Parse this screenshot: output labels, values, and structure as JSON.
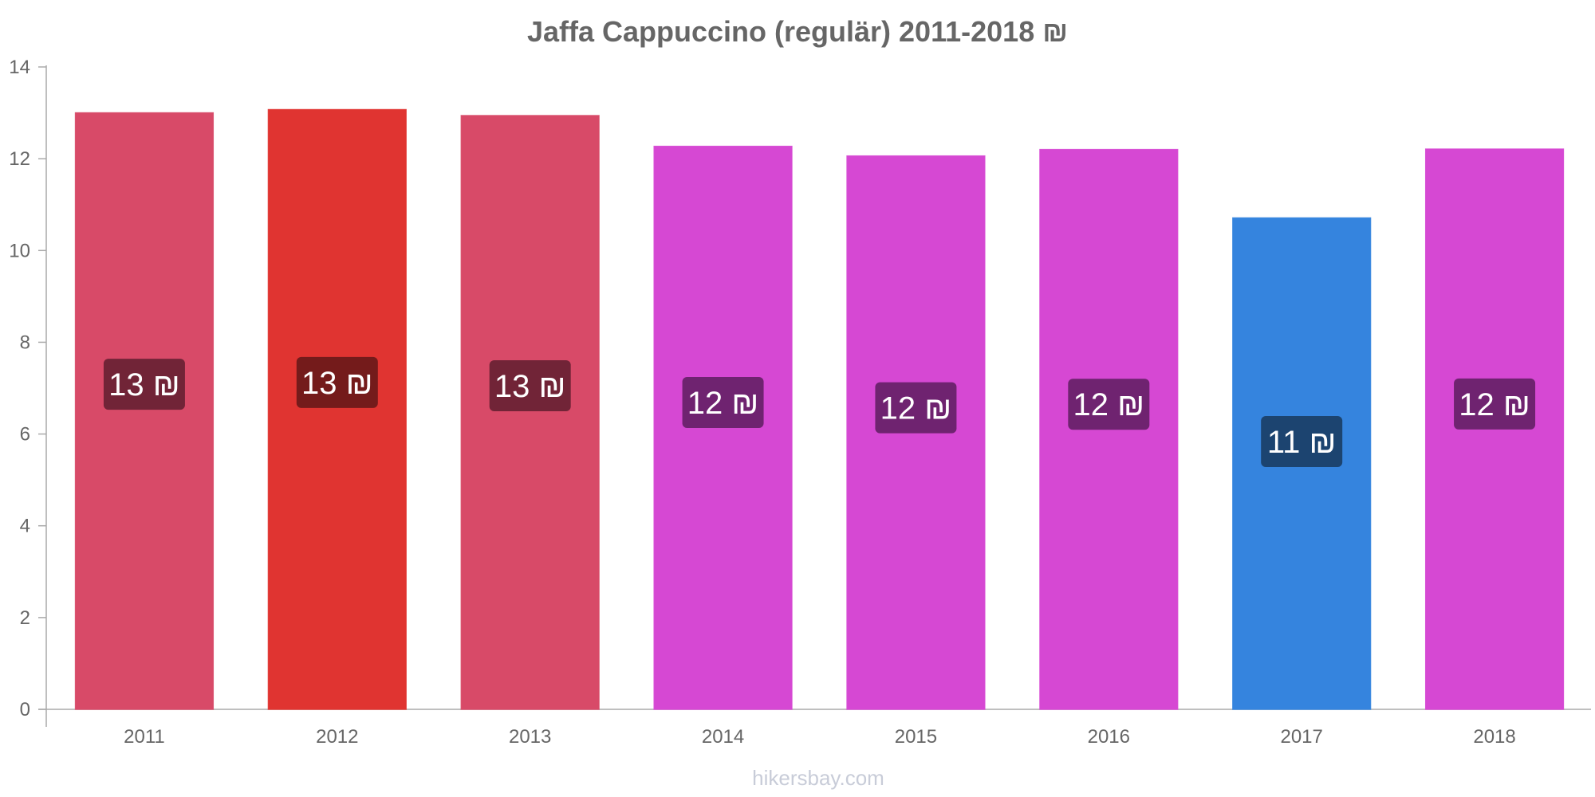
{
  "chart_data": {
    "type": "bar",
    "title": "Jaffa Cappuccino (regulär) 2011-2018 ₪",
    "xlabel": "",
    "ylabel": "",
    "categories": [
      "2011",
      "2012",
      "2013",
      "2014",
      "2015",
      "2016",
      "2017",
      "2018"
    ],
    "values": [
      13.0,
      13.07,
      12.94,
      12.27,
      12.06,
      12.2,
      10.71,
      12.21
    ],
    "data_labels": [
      "13 ₪",
      "13 ₪",
      "13 ₪",
      "12 ₪",
      "12 ₪",
      "12 ₪",
      "11 ₪",
      "12 ₪"
    ],
    "ylim": [
      0,
      14
    ],
    "y_ticks": [
      "0",
      "2",
      "4",
      "6",
      "8",
      "10",
      "12",
      "14"
    ],
    "grid": false,
    "legend": "none",
    "bar_colors": [
      "#d84a68",
      "#e03431",
      "#d84a68",
      "#d648d3",
      "#d648d3",
      "#d648d3",
      "#3584de",
      "#d648d3"
    ],
    "label_box_colors": [
      "#712437",
      "#741b1b",
      "#712437",
      "#6f2370",
      "#6f2370",
      "#6f2370",
      "#1c4470",
      "#6f2370"
    ]
  },
  "watermark": "hikersbay.com"
}
